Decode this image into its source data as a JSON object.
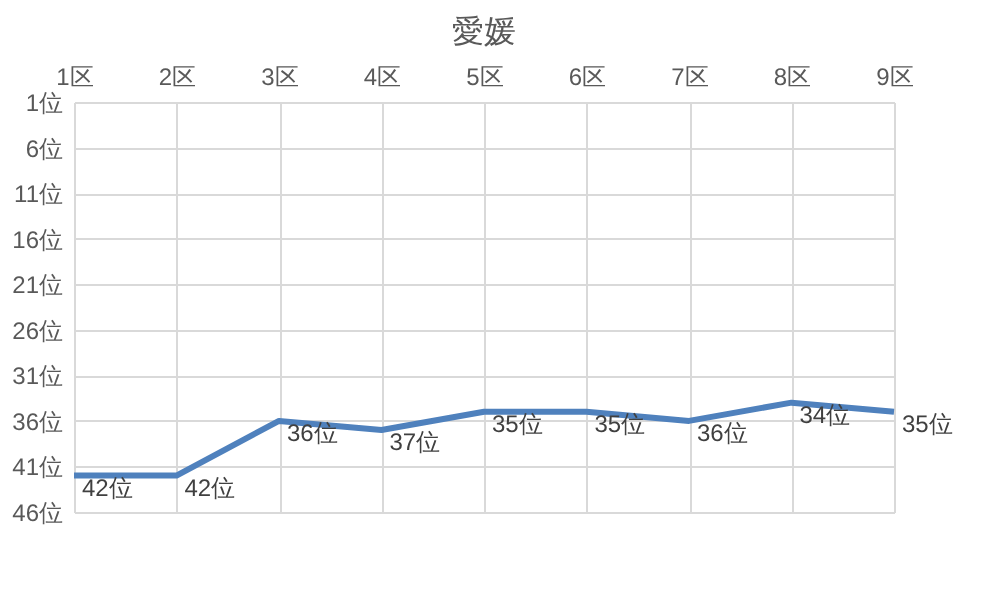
{
  "chart_data": {
    "type": "line",
    "title": "愛媛",
    "categories": [
      "1区",
      "2区",
      "3区",
      "4区",
      "5区",
      "6区",
      "7区",
      "8区",
      "9区"
    ],
    "series": [
      {
        "color": "#4f81bd",
        "values": [
          42,
          42,
          36,
          37,
          35,
          35,
          36,
          34,
          35
        ],
        "value_labels": [
          "42位",
          "42位",
          "36位",
          "37位",
          "35位",
          "35位",
          "36位",
          "34位",
          "35位"
        ]
      }
    ],
    "ylim": [
      46,
      1
    ],
    "yticks": [
      {
        "value": 1,
        "label": "1位"
      },
      {
        "value": 6,
        "label": "6位"
      },
      {
        "value": 11,
        "label": "11位"
      },
      {
        "value": 16,
        "label": "16位"
      },
      {
        "value": 21,
        "label": "21位"
      },
      {
        "value": 26,
        "label": "26位"
      },
      {
        "value": 31,
        "label": "31位"
      },
      {
        "value": 36,
        "label": "36位"
      },
      {
        "value": 41,
        "label": "41位"
      },
      {
        "value": 46,
        "label": "46位"
      }
    ],
    "grid": true,
    "marker": "none",
    "line_style": "solid"
  }
}
